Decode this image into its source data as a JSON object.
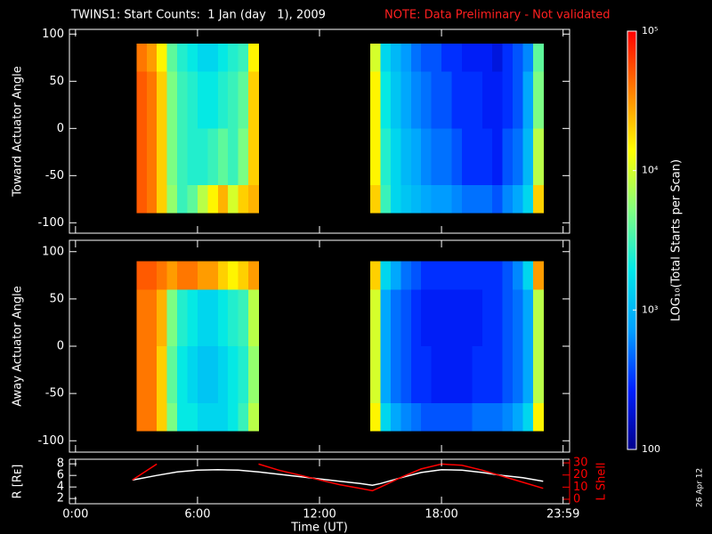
{
  "title": "TWINS1: Start Counts:  1 Jan (day   1), 2009",
  "note": "NOTE: Data Preliminary - Not validated",
  "date_stamp": "26 Apr 12",
  "colorbar": {
    "label": "LOG₁₀(Total Starts per Scan)",
    "scale": "log",
    "zlim": [
      100,
      100000
    ],
    "zticks": [
      100,
      {
        "value": 1000,
        "label": "10³"
      },
      {
        "value": 10000,
        "label": "10⁴"
      },
      {
        "value": 100000,
        "label": "10⁵"
      }
    ],
    "colormap": [
      "#00008c",
      "#0020ff",
      "#00a0ff",
      "#00e8e8",
      "#80ff80",
      "#ffff00",
      "#ff8000",
      "#ff0000"
    ]
  },
  "chart_data": [
    {
      "type": "heatmap",
      "ylabel": "Toward Actuator Angle",
      "ylim": [
        -111,
        105
      ],
      "yticks": [
        -100,
        -50,
        0,
        50,
        100
      ],
      "x_bins": [
        3,
        3.5,
        4,
        4.5,
        5,
        5.5,
        6,
        6.5,
        7,
        7.5,
        8,
        8.5,
        9,
        9.5,
        10,
        10.5,
        11,
        11.5,
        12,
        12.5,
        13,
        13.5,
        14,
        14.5,
        15,
        15.5,
        16,
        16.5,
        17,
        17.5,
        18,
        18.5,
        19,
        19.5,
        20,
        20.5,
        21,
        21.5,
        22,
        22.5,
        23
      ],
      "y_bins": [
        -90,
        -60,
        0,
        60,
        90
      ],
      "values": [
        [
          50000,
          40000,
          20000,
          6000,
          3000,
          4000,
          8000,
          15000,
          25000,
          10000,
          20000,
          25000,
          null,
          null,
          null,
          null,
          null,
          null,
          null,
          null,
          null,
          null,
          null,
          20000,
          3000,
          1500,
          1200,
          1000,
          800,
          700,
          700,
          600,
          500,
          500,
          500,
          400,
          600,
          800,
          1500,
          20000
        ],
        [
          50000,
          40000,
          20000,
          5000,
          3000,
          2500,
          2500,
          3000,
          4000,
          3000,
          5000,
          20000,
          null,
          null,
          null,
          null,
          null,
          null,
          null,
          null,
          null,
          null,
          null,
          15000,
          2500,
          1500,
          1000,
          800,
          600,
          500,
          500,
          400,
          300,
          300,
          300,
          250,
          400,
          500,
          1000,
          8000
        ],
        [
          50000,
          40000,
          20000,
          5000,
          3000,
          2500,
          2000,
          2000,
          2500,
          3000,
          4000,
          20000,
          null,
          null,
          null,
          null,
          null,
          null,
          null,
          null,
          null,
          null,
          null,
          15000,
          2000,
          1200,
          800,
          600,
          500,
          400,
          400,
          300,
          300,
          300,
          250,
          250,
          300,
          400,
          800,
          5000
        ],
        [
          40000,
          30000,
          15000,
          4000,
          2500,
          2000,
          1500,
          1500,
          2000,
          2500,
          3000,
          15000,
          null,
          null,
          null,
          null,
          null,
          null,
          null,
          null,
          null,
          null,
          null,
          10000,
          1500,
          1000,
          700,
          500,
          400,
          400,
          300,
          300,
          250,
          250,
          250,
          200,
          300,
          400,
          600,
          4000
        ]
      ]
    },
    {
      "type": "heatmap",
      "ylabel": "Away Actuator Angle",
      "ylim": [
        -112,
        112
      ],
      "yticks": [
        -100,
        -50,
        0,
        50,
        100
      ],
      "x_bins": [
        3,
        3.5,
        4,
        4.5,
        5,
        5.5,
        6,
        6.5,
        7,
        7.5,
        8,
        8.5,
        9,
        9.5,
        10,
        10.5,
        11,
        11.5,
        12,
        12.5,
        13,
        13.5,
        14,
        14.5,
        15,
        15.5,
        16,
        16.5,
        17,
        17.5,
        18,
        18.5,
        19,
        19.5,
        20,
        20.5,
        21,
        21.5,
        22,
        22.5,
        23
      ],
      "y_bins": [
        -90,
        -60,
        0,
        60,
        90
      ],
      "values": [
        [
          40000,
          40000,
          20000,
          5000,
          2000,
          2000,
          1500,
          1500,
          1500,
          2000,
          3000,
          8000,
          null,
          null,
          null,
          null,
          null,
          null,
          null,
          null,
          null,
          null,
          null,
          15000,
          1500,
          800,
          600,
          500,
          400,
          400,
          400,
          400,
          400,
          500,
          500,
          500,
          600,
          800,
          1500,
          15000
        ],
        [
          40000,
          40000,
          20000,
          4000,
          2000,
          1500,
          1200,
          1200,
          1500,
          2000,
          2500,
          6000,
          null,
          null,
          null,
          null,
          null,
          null,
          null,
          null,
          null,
          null,
          null,
          10000,
          800,
          500,
          400,
          300,
          300,
          250,
          250,
          250,
          250,
          300,
          300,
          300,
          400,
          500,
          800,
          8000
        ],
        [
          40000,
          40000,
          25000,
          5000,
          2500,
          2000,
          1500,
          1500,
          2000,
          2500,
          3000,
          8000,
          null,
          null,
          null,
          null,
          null,
          null,
          null,
          null,
          null,
          null,
          null,
          10000,
          800,
          500,
          400,
          300,
          250,
          250,
          250,
          250,
          250,
          250,
          300,
          300,
          400,
          500,
          800,
          8000
        ],
        [
          50000,
          50000,
          40000,
          30000,
          40000,
          40000,
          30000,
          30000,
          20000,
          15000,
          20000,
          30000,
          null,
          null,
          null,
          null,
          null,
          null,
          null,
          null,
          null,
          null,
          null,
          20000,
          1500,
          800,
          500,
          400,
          300,
          300,
          300,
          300,
          300,
          300,
          300,
          300,
          400,
          600,
          1500,
          30000
        ]
      ]
    },
    {
      "type": "line",
      "xlabel": "Time (UT)",
      "ylabel": "R [Rᴇ]",
      "y2label": "L Shell",
      "xlim": [
        -0.3,
        24.3
      ],
      "xticks": [
        {
          "value": 0,
          "label": "0:00"
        },
        {
          "value": 6,
          "label": "6:00"
        },
        {
          "value": 12,
          "label": "12:00"
        },
        {
          "value": 18,
          "label": "18:00"
        },
        {
          "value": 23.98,
          "label": "23:59"
        }
      ],
      "ylim": [
        1.1,
        8.8
      ],
      "yticks": [
        2,
        4,
        6,
        8
      ],
      "y2lim": [
        -3.7,
        33
      ],
      "y2ticks": [
        0,
        10,
        20,
        30
      ],
      "y2color": "#ff0000",
      "x": [
        2.8,
        4,
        5,
        6,
        7,
        8,
        9,
        10,
        11,
        12,
        13,
        14,
        14.6,
        15,
        16,
        17,
        18,
        19,
        20,
        21,
        22,
        23
      ],
      "series": [
        {
          "color": "#ffffff",
          "values": [
            5.2,
            6.0,
            6.6,
            6.9,
            7.0,
            6.9,
            6.6,
            6.2,
            5.8,
            5.4,
            5.0,
            4.6,
            4.3,
            4.6,
            5.6,
            6.5,
            7.0,
            6.9,
            6.5,
            6.0,
            5.6,
            5.0
          ]
        },
        {
          "color": "#ff0000",
          "axis": "y2",
          "values": [
            16,
            29,
            null,
            null,
            null,
            null,
            29,
            24,
            20,
            16,
            12,
            9,
            7,
            10,
            18,
            25,
            29,
            28,
            24,
            19,
            14,
            9
          ]
        }
      ]
    }
  ]
}
